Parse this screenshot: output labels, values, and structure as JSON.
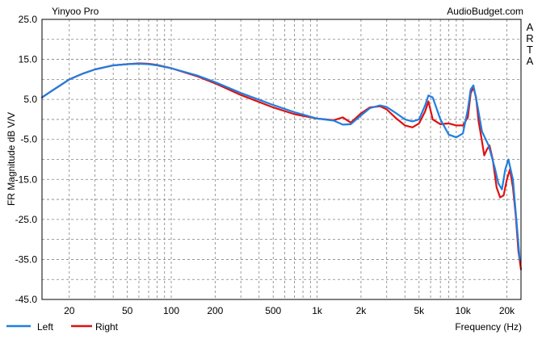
{
  "chart_data": {
    "type": "line",
    "title": "Yinyoo Pro",
    "source_label": "AudioBudget.com",
    "side_label_letters": [
      "A",
      "R",
      "T",
      "A"
    ],
    "xlabel": "Frequency (Hz)",
    "ylabel": "FR Magnitude dB V/V",
    "xscale": "log",
    "xlim": [
      13,
      25000
    ],
    "ylim": [
      -45,
      25
    ],
    "y_ticks": [
      -45,
      -35,
      -25,
      -15,
      -5,
      5,
      15,
      25
    ],
    "y_tick_labels": [
      "-45.0",
      "-35.0",
      "-25.0",
      "-15.0",
      "-5.0",
      "5.0",
      "15.0",
      "25.0"
    ],
    "x_ticks": [
      20,
      50,
      100,
      200,
      500,
      1000,
      2000,
      5000,
      10000,
      20000
    ],
    "x_tick_labels": [
      "20",
      "50",
      "100",
      "200",
      "500",
      "1k",
      "2k",
      "5k",
      "10k",
      "20k"
    ],
    "grid": true,
    "legend_position": "bottom-left",
    "colors": {
      "Left": "#1f7fe0",
      "Right": "#e01010",
      "background": "#ffffff",
      "grid": "#808080"
    },
    "series": [
      {
        "name": "Left",
        "x": [
          13,
          15,
          20,
          25,
          30,
          40,
          50,
          60,
          70,
          80,
          100,
          150,
          200,
          300,
          500,
          700,
          1000,
          1300,
          1500,
          1700,
          2000,
          2300,
          2700,
          3000,
          3500,
          4000,
          4500,
          5000,
          5500,
          5800,
          6200,
          7000,
          8000,
          9000,
          10000,
          10800,
          11300,
          11800,
          12500,
          13500,
          15000,
          16500,
          17500,
          18500,
          19500,
          20500,
          22000,
          23500,
          24500
        ],
        "values": [
          5.5,
          7.0,
          10.0,
          11.5,
          12.5,
          13.5,
          13.8,
          13.9,
          13.8,
          13.5,
          12.8,
          11.0,
          9.3,
          6.6,
          3.6,
          1.8,
          0.2,
          -0.3,
          -1.3,
          -1.2,
          1.0,
          2.8,
          3.5,
          3.1,
          1.5,
          0.0,
          -0.5,
          0.0,
          3.5,
          6.0,
          5.5,
          0.0,
          -3.8,
          -4.5,
          -3.5,
          2.5,
          7.5,
          8.5,
          4.0,
          -3.0,
          -6.5,
          -12.0,
          -16.0,
          -17.5,
          -12.5,
          -10.0,
          -15.0,
          -27.0,
          -35.0
        ]
      },
      {
        "name": "Right",
        "x": [
          13,
          15,
          20,
          25,
          30,
          40,
          50,
          60,
          70,
          80,
          100,
          150,
          200,
          300,
          500,
          700,
          1000,
          1300,
          1500,
          1700,
          2000,
          2300,
          2700,
          3000,
          3500,
          4000,
          4500,
          5000,
          5500,
          5800,
          6200,
          7000,
          8000,
          9000,
          10000,
          10800,
          11300,
          11800,
          12300,
          12800,
          13300,
          14000,
          14600,
          15200,
          16000,
          17000,
          18000,
          19000,
          20000,
          21000,
          22000,
          23000,
          24000,
          25000
        ],
        "values": [
          5.5,
          7.0,
          10.0,
          11.5,
          12.5,
          13.5,
          13.8,
          14.0,
          13.9,
          13.6,
          12.8,
          10.8,
          9.0,
          6.1,
          3.0,
          1.3,
          0.2,
          -0.2,
          0.5,
          -0.8,
          1.5,
          3.0,
          3.3,
          2.5,
          0.2,
          -1.5,
          -2.0,
          -1.0,
          2.0,
          4.5,
          0.0,
          -1.2,
          -1.0,
          -1.5,
          -1.5,
          0.5,
          6.5,
          8.0,
          5.5,
          -0.5,
          -4.0,
          -9.0,
          -7.5,
          -6.5,
          -10.0,
          -17.0,
          -19.5,
          -19.0,
          -15.0,
          -12.5,
          -17.0,
          -24.0,
          -33.0,
          -37.5
        ]
      }
    ]
  }
}
